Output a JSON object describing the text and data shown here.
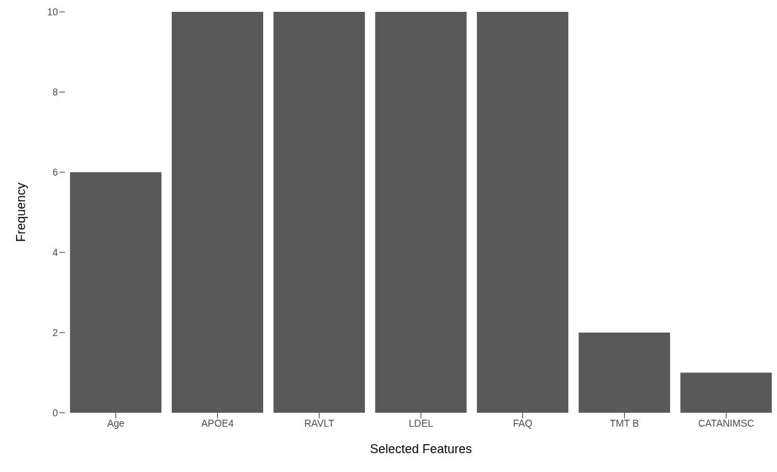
{
  "chart_data": {
    "type": "bar",
    "xlabel": "Selected Features",
    "ylabel": "Frequency",
    "categories": [
      "Age",
      "APOE4",
      "RAVLT",
      "LDEL",
      "FAQ",
      "TMT B",
      "CATANIMSC"
    ],
    "values": [
      6,
      10,
      10,
      10,
      10,
      2,
      1
    ],
    "color": "#595959",
    "ylim": [
      0,
      10
    ],
    "yticks": [
      0,
      2,
      4,
      6,
      8,
      10
    ],
    "grid": false,
    "legend": false
  }
}
